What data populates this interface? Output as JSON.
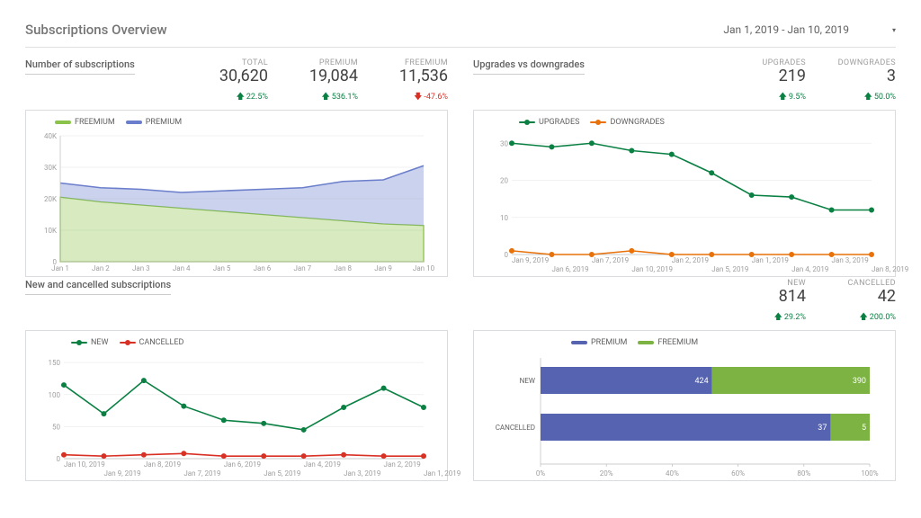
{
  "header": {
    "title": "Subscriptions Overview",
    "date_range": "Jan 1, 2019 - Jan 10, 2019"
  },
  "colors": {
    "premium": "#6a7ecb",
    "freemium": "#8bc34a",
    "upgrades_line": "#0a8043",
    "downgrades_line": "#e8710a",
    "new_line": "#0a8043",
    "cancelled_line": "#d93025",
    "bar_premium": "#5663b0",
    "bar_freemium": "#7cb342"
  },
  "subscriptions": {
    "title": "Number of subscriptions",
    "kpis": [
      {
        "label": "TOTAL",
        "value": "30,620",
        "delta": "22.5%",
        "dir": "up"
      },
      {
        "label": "PREMIUM",
        "value": "19,084",
        "delta": "536.1%",
        "dir": "up"
      },
      {
        "label": "FREEMIUM",
        "value": "11,536",
        "delta": "-47.6%",
        "dir": "down"
      }
    ],
    "legend": [
      {
        "label": "FREEMIUM",
        "color": "#8bc34a"
      },
      {
        "label": "PREMIUM",
        "color": "#6a7ecb"
      }
    ],
    "type": "stacked-area",
    "x_labels": [
      "Jan 1",
      "Jan 2",
      "Jan 3",
      "Jan 4",
      "Jan 5",
      "Jan 6",
      "Jan 7",
      "Jan 8",
      "Jan 9",
      "Jan 10"
    ],
    "y_ticks": [
      0,
      10,
      20,
      30,
      40
    ],
    "y_tick_labels": [
      "0",
      "10K",
      "20K",
      "30K",
      "40K"
    ],
    "y_max": 40,
    "freemium": [
      20.5,
      19,
      18,
      17,
      16,
      15,
      14,
      13,
      12,
      11.5
    ],
    "premium_total": [
      25,
      23.5,
      23,
      22,
      22.5,
      23,
      23.5,
      25.5,
      26,
      30.5
    ]
  },
  "upgrades": {
    "title": "Upgrades vs downgrades",
    "kpis": [
      {
        "label": "UPGRADES",
        "value": "219",
        "delta": "9.5%",
        "dir": "up"
      },
      {
        "label": "DOWNGRADES",
        "value": "3",
        "delta": "50.0%",
        "dir": "up"
      }
    ],
    "legend": [
      {
        "label": "UPGRADES",
        "color": "#0a8043"
      },
      {
        "label": "DOWNGRADES",
        "color": "#e8710a"
      }
    ],
    "type": "line",
    "x_labels_top": [
      "Jan 9, 2019",
      "Jan 7, 2019",
      "Jan 2, 2019",
      "Jan 1, 2019",
      "Jan 3, 2019"
    ],
    "x_labels_bot": [
      "Jan 6, 2019",
      "Jan 10, 2019",
      "Jan 5, 2019",
      "Jan 4, 2019",
      "Jan 8, 2019"
    ],
    "y_ticks": [
      0,
      10,
      20,
      30
    ],
    "y_max": 32,
    "upgrades_series": [
      30,
      29,
      30,
      28,
      27,
      22,
      16,
      15.5,
      12,
      12
    ],
    "downgrades_series": [
      1,
      0,
      0,
      1,
      0,
      0,
      0,
      0,
      0,
      0
    ]
  },
  "new_cancelled": {
    "title": "New and cancelled subscriptions",
    "kpis": [
      {
        "label": "NEW",
        "value": "814",
        "delta": "29.2%",
        "dir": "up"
      },
      {
        "label": "CANCELLED",
        "value": "42",
        "delta": "200.0%",
        "dir": "up"
      }
    ],
    "legend": [
      {
        "label": "NEW",
        "color": "#0a8043"
      },
      {
        "label": "CANCELLED",
        "color": "#d93025"
      }
    ],
    "type": "line",
    "x_labels_top": [
      "Jan 10, 2019",
      "Jan 8, 2019",
      "Jan 6, 2019",
      "Jan 4, 2019",
      "Jan 2, 2019"
    ],
    "x_labels_bot": [
      "Jan 9, 2019",
      "Jan 7, 2019",
      "Jan 5, 2019",
      "Jan 3, 2019",
      "Jan 1, 2019"
    ],
    "y_ticks": [
      0,
      50,
      100,
      150
    ],
    "y_max": 160,
    "new_series": [
      115,
      70,
      122,
      82,
      60,
      55,
      45,
      80,
      110,
      80
    ],
    "cancelled_series": [
      6,
      4,
      6,
      8,
      4,
      4,
      4,
      6,
      4,
      4
    ]
  },
  "breakdown": {
    "type": "stacked-bar-100",
    "legend": [
      {
        "label": "PREMIUM",
        "color": "#5663b0"
      },
      {
        "label": "FREEMIUM",
        "color": "#7cb342"
      }
    ],
    "x_ticks": [
      "0%",
      "20%",
      "40%",
      "60%",
      "80%",
      "100%"
    ],
    "rows": [
      {
        "label": "NEW",
        "premium": 424,
        "freemium": 390
      },
      {
        "label": "CANCELLED",
        "premium": 37,
        "freemium": 5
      }
    ]
  }
}
